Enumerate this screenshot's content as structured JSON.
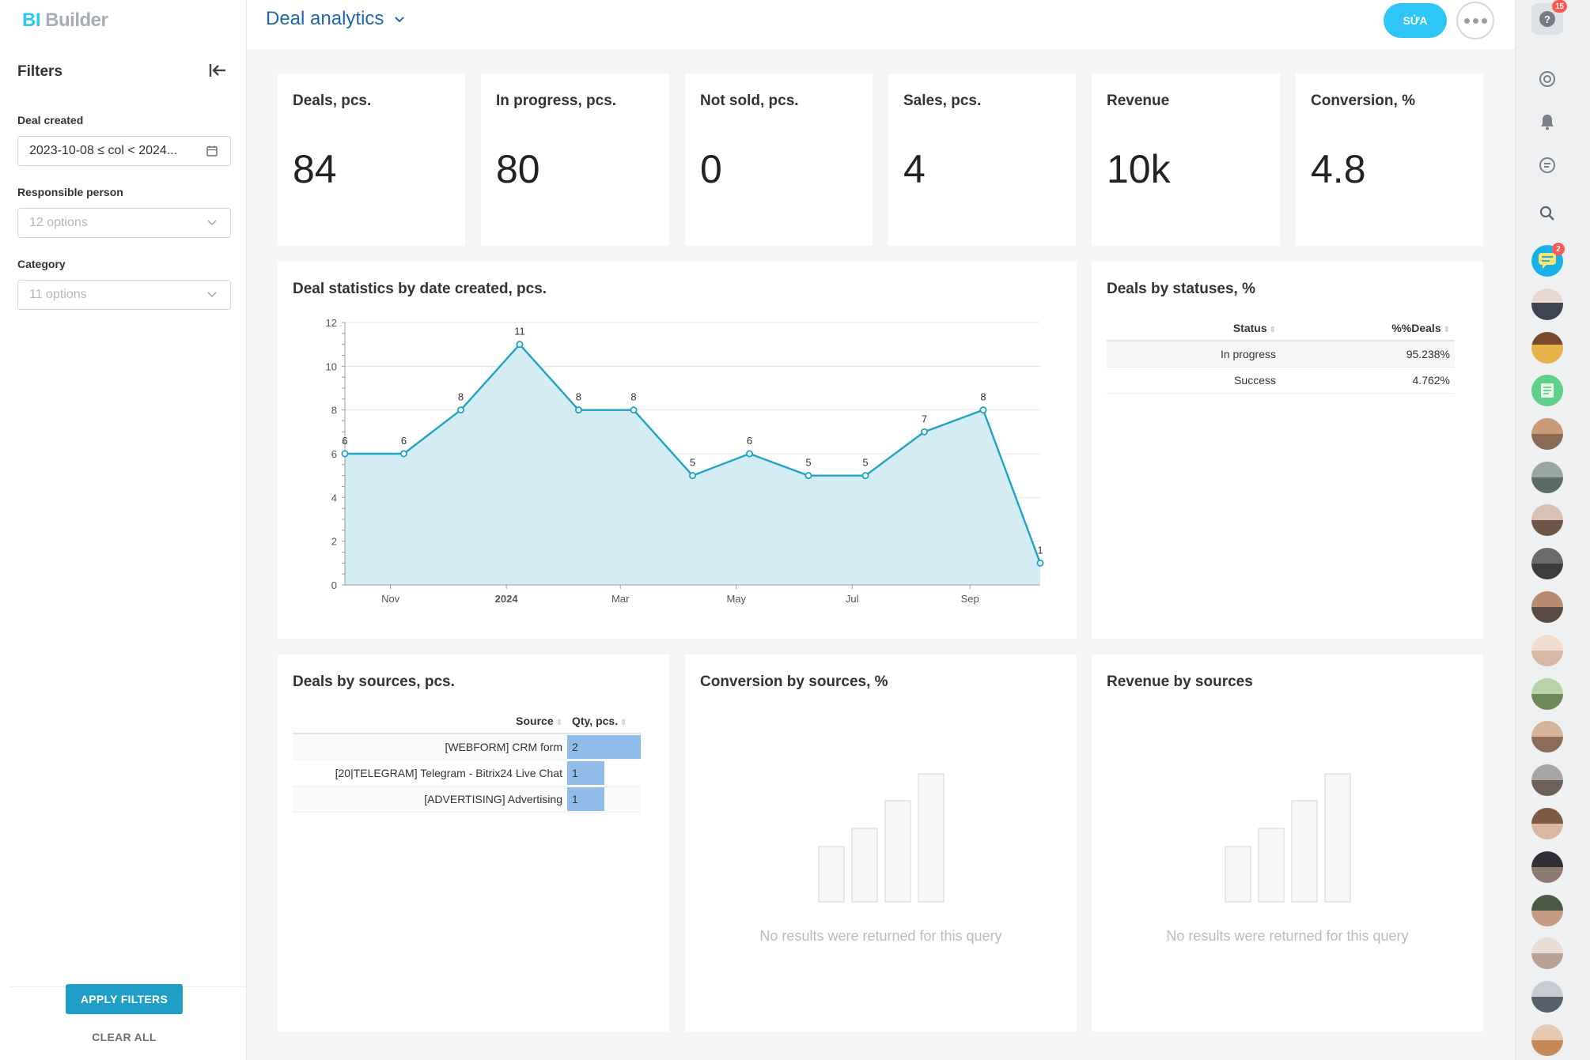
{
  "app": {
    "logo_bi": "BI",
    "logo_builder": "Builder"
  },
  "header": {
    "title": "Deal analytics",
    "edit_label": "SỬA"
  },
  "filters": {
    "title": "Filters",
    "deal_created": {
      "label": "Deal created",
      "value": "2023-10-08 ≤ col < 2024..."
    },
    "responsible": {
      "label": "Responsible person",
      "placeholder": "12 options"
    },
    "category": {
      "label": "Category",
      "placeholder": "11 options"
    },
    "apply_label": "APPLY FILTERS",
    "clear_label": "CLEAR ALL"
  },
  "kpis": [
    {
      "title": "Deals, pcs.",
      "value": "84"
    },
    {
      "title": "In progress, pcs.",
      "value": "80"
    },
    {
      "title": "Not sold, pcs.",
      "value": "0"
    },
    {
      "title": "Sales, pcs.",
      "value": "4"
    },
    {
      "title": "Revenue",
      "value": "10k"
    },
    {
      "title": "Conversion, %",
      "value": "4.8"
    }
  ],
  "stats_card": {
    "title": "Deal statistics by date created, pcs."
  },
  "chart_data": {
    "type": "area",
    "x": [
      "2023-10-08",
      "2023-11-08",
      "2023-12-08",
      "2024-01-08",
      "2024-02-08",
      "2024-03-08",
      "2024-04-08",
      "2024-05-08",
      "2024-06-08",
      "2024-07-08",
      "2024-08-08",
      "2024-09-08",
      "2024-10-08"
    ],
    "values": [
      6,
      6,
      8,
      11,
      8,
      8,
      5,
      6,
      5,
      5,
      7,
      8,
      1
    ],
    "ylim": [
      0,
      12
    ],
    "y_ticks": [
      0,
      2,
      4,
      6,
      8,
      10,
      12
    ],
    "x_ticks": [
      "Nov",
      "2024",
      "Mar",
      "May",
      "Jul",
      "Sep"
    ],
    "x_tick_dates": [
      "2023-11-01",
      "2024-01-01",
      "2024-03-01",
      "2024-05-01",
      "2024-07-01",
      "2024-09-01"
    ],
    "grid": true,
    "color": "#1fa3c7",
    "fill": "#d4ecf3"
  },
  "statuses": {
    "title": "Deals by statuses, %",
    "headers": [
      "Status",
      "%%Deals"
    ],
    "rows": [
      {
        "status": "In progress",
        "pct": "95.238%"
      },
      {
        "status": "Success",
        "pct": "4.762%"
      }
    ]
  },
  "sources": {
    "title": "Deals by sources, pcs.",
    "headers": [
      "Source",
      "Qty, pcs."
    ],
    "rows": [
      {
        "source": "[WEBFORM] CRM form",
        "qty": "2",
        "fraction": 1.0
      },
      {
        "source": "[20|TELEGRAM] Telegram - Bitrix24 Live Chat",
        "qty": "1",
        "fraction": 0.5
      },
      {
        "source": "[ADVERTISING] Advertising",
        "qty": "1",
        "fraction": 0.5
      }
    ]
  },
  "conversion_card": {
    "title": "Conversion by sources, %",
    "empty": "No results were returned for this query"
  },
  "revenue_card": {
    "title": "Revenue by sources",
    "empty": "No results were returned for this query"
  },
  "rail": {
    "help_badge": "15",
    "chat_badge": "2"
  },
  "colors": {
    "accent": "#2fc6f6",
    "title_blue": "#2066b0",
    "apply": "#1f9ec8",
    "bar": "#8fbce8"
  }
}
